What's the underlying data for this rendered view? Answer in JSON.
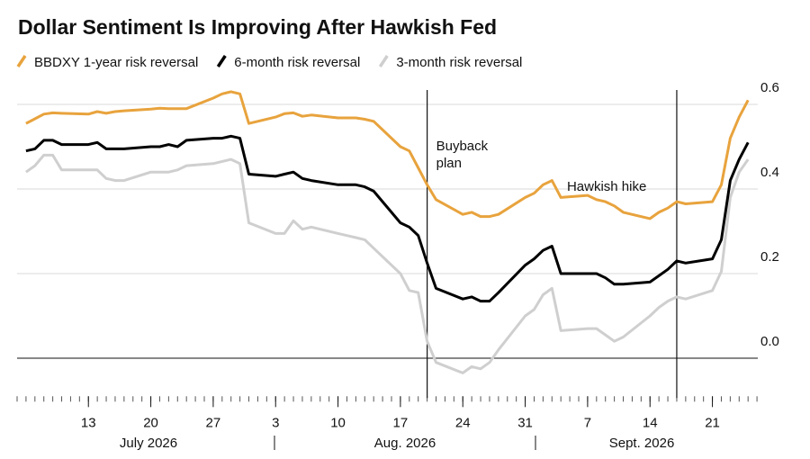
{
  "chart_data": {
    "type": "line",
    "title": "Dollar Sentiment Is Improving After Hawkish Fed",
    "x": [
      "2026-07-06",
      "2026-07-07",
      "2026-07-08",
      "2026-07-09",
      "2026-07-10",
      "2026-07-13",
      "2026-07-14",
      "2026-07-15",
      "2026-07-16",
      "2026-07-17",
      "2026-07-20",
      "2026-07-21",
      "2026-07-22",
      "2026-07-23",
      "2026-07-24",
      "2026-07-27",
      "2026-07-28",
      "2026-07-29",
      "2026-07-30",
      "2026-07-31",
      "2026-08-03",
      "2026-08-04",
      "2026-08-05",
      "2026-08-06",
      "2026-08-07",
      "2026-08-10",
      "2026-08-11",
      "2026-08-12",
      "2026-08-13",
      "2026-08-14",
      "2026-08-17",
      "2026-08-18",
      "2026-08-19",
      "2026-08-20",
      "2026-08-21",
      "2026-08-24",
      "2026-08-25",
      "2026-08-26",
      "2026-08-27",
      "2026-08-28",
      "2026-08-31",
      "2026-09-01",
      "2026-09-02",
      "2026-09-03",
      "2026-09-04",
      "2026-09-07",
      "2026-09-08",
      "2026-09-09",
      "2026-09-10",
      "2026-09-11",
      "2026-09-14",
      "2026-09-15",
      "2026-09-16",
      "2026-09-17",
      "2026-09-18",
      "2026-09-21",
      "2026-09-22",
      "2026-09-23",
      "2026-09-24",
      "2026-09-25"
    ],
    "series": [
      {
        "name": "BBDXY 1-year risk reversal",
        "color": "#e8a33d",
        "values": [
          0.555,
          0.566,
          0.577,
          0.58,
          0.579,
          0.577,
          0.583,
          0.579,
          0.583,
          0.585,
          0.589,
          0.591,
          0.59,
          0.59,
          0.59,
          0.615,
          0.625,
          0.63,
          0.625,
          0.555,
          0.57,
          0.578,
          0.58,
          0.572,
          0.575,
          0.568,
          0.568,
          0.568,
          0.565,
          0.56,
          0.5,
          0.49,
          0.45,
          0.41,
          0.375,
          0.34,
          0.345,
          0.335,
          0.335,
          0.34,
          0.38,
          0.39,
          0.41,
          0.42,
          0.38,
          0.385,
          0.375,
          0.37,
          0.36,
          0.345,
          0.33,
          0.345,
          0.355,
          0.37,
          0.365,
          0.37,
          0.41,
          0.52,
          0.57,
          0.61
        ]
      },
      {
        "name": "6-month risk reversal",
        "color": "#000000",
        "values": [
          0.49,
          0.495,
          0.515,
          0.515,
          0.505,
          0.505,
          0.51,
          0.495,
          0.495,
          0.495,
          0.5,
          0.5,
          0.505,
          0.5,
          0.515,
          0.52,
          0.52,
          0.525,
          0.52,
          0.435,
          0.43,
          0.435,
          0.44,
          0.425,
          0.42,
          0.41,
          0.41,
          0.41,
          0.405,
          0.395,
          0.32,
          0.31,
          0.29,
          0.225,
          0.165,
          0.14,
          0.145,
          0.135,
          0.135,
          0.155,
          0.22,
          0.235,
          0.255,
          0.265,
          0.2,
          0.2,
          0.2,
          0.19,
          0.175,
          0.175,
          0.18,
          0.195,
          0.21,
          0.23,
          0.225,
          0.235,
          0.28,
          0.42,
          0.47,
          0.51
        ]
      },
      {
        "name": "3-month risk reversal",
        "color": "#cfcfcf",
        "values": [
          0.44,
          0.455,
          0.48,
          0.48,
          0.445,
          0.445,
          0.445,
          0.425,
          0.42,
          0.42,
          0.44,
          0.44,
          0.44,
          0.445,
          0.455,
          0.46,
          0.465,
          0.47,
          0.46,
          0.32,
          0.295,
          0.295,
          0.325,
          0.305,
          0.31,
          0.295,
          0.29,
          0.285,
          0.28,
          0.26,
          0.2,
          0.16,
          0.155,
          0.04,
          -0.01,
          -0.035,
          -0.02,
          -0.025,
          -0.01,
          0.02,
          0.1,
          0.115,
          0.15,
          0.165,
          0.065,
          0.07,
          0.07,
          0.055,
          0.04,
          0.05,
          0.1,
          0.12,
          0.135,
          0.145,
          0.14,
          0.16,
          0.205,
          0.38,
          0.44,
          0.47
        ]
      }
    ],
    "xlim": [
      "2026-07-05",
      "2026-09-27"
    ],
    "xticks": [
      {
        "value": "2026-07-13",
        "label": "13"
      },
      {
        "value": "2026-07-20",
        "label": "20"
      },
      {
        "value": "2026-07-27",
        "label": "27"
      },
      {
        "value": "2026-08-03",
        "label": "3"
      },
      {
        "value": "2026-08-10",
        "label": "10"
      },
      {
        "value": "2026-08-17",
        "label": "17"
      },
      {
        "value": "2026-08-24",
        "label": "24"
      },
      {
        "value": "2026-08-31",
        "label": "31"
      },
      {
        "value": "2026-09-07",
        "label": "7"
      },
      {
        "value": "2026-09-14",
        "label": "14"
      },
      {
        "value": "2026-09-21",
        "label": "21"
      }
    ],
    "months": [
      "July 2026",
      "Aug. 2026",
      "Sept. 2026"
    ],
    "ylim": [
      -0.09,
      0.65
    ],
    "yticks": [
      {
        "value": 0,
        "label": "0.0"
      },
      0.2,
      0.4,
      0.6
    ],
    "grid": true,
    "annotations": [
      {
        "date": "2026-08-20",
        "label": "Buyback plan"
      },
      {
        "date": "2026-09-17",
        "label": "Hawkish hike"
      }
    ]
  }
}
